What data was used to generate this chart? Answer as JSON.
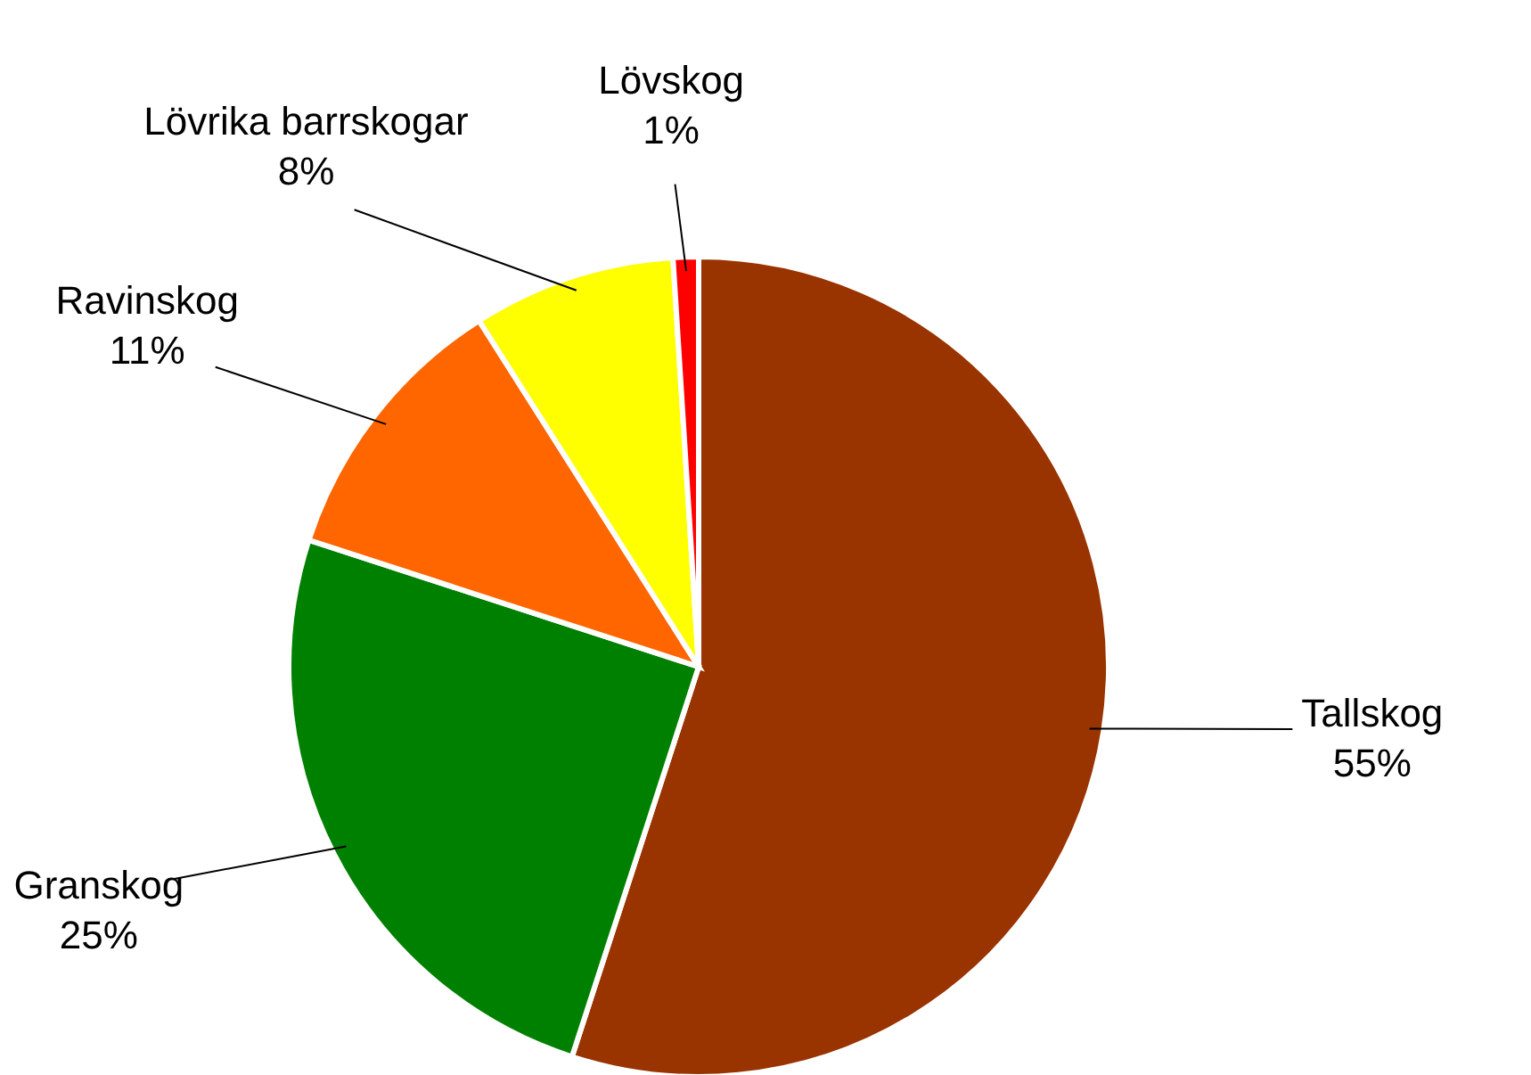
{
  "chart_data": {
    "type": "pie",
    "categories": [
      "Tallskog",
      "Granskog",
      "Ravinskog",
      "Lövrika barrskogar",
      "Lövskog"
    ],
    "values": [
      55,
      25,
      11,
      8,
      1
    ],
    "colors": [
      "#993300",
      "#008000",
      "#ff6600",
      "#ffff00",
      "#ff0000"
    ],
    "value_labels": [
      "55%",
      "25%",
      "11%",
      "8%",
      "1%"
    ]
  }
}
